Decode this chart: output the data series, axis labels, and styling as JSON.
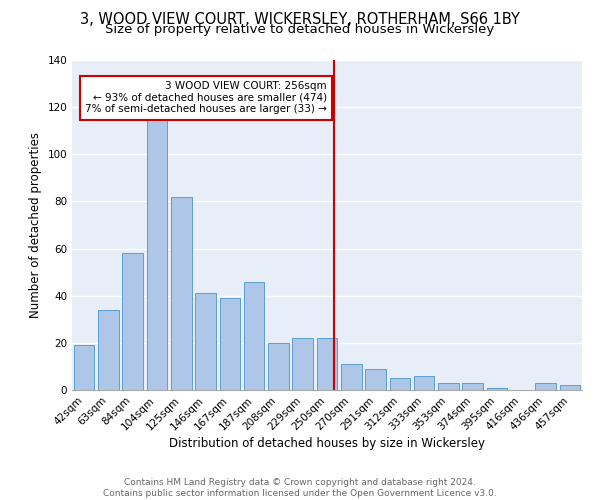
{
  "title": "3, WOOD VIEW COURT, WICKERSLEY, ROTHERHAM, S66 1BY",
  "subtitle": "Size of property relative to detached houses in Wickersley",
  "xlabel": "Distribution of detached houses by size in Wickersley",
  "ylabel": "Number of detached properties",
  "footnote": "Contains HM Land Registry data © Crown copyright and database right 2024.\nContains public sector information licensed under the Open Government Licence v3.0.",
  "categories": [
    "42sqm",
    "63sqm",
    "84sqm",
    "104sqm",
    "125sqm",
    "146sqm",
    "167sqm",
    "187sqm",
    "208sqm",
    "229sqm",
    "250sqm",
    "270sqm",
    "291sqm",
    "312sqm",
    "333sqm",
    "353sqm",
    "374sqm",
    "395sqm",
    "416sqm",
    "436sqm",
    "457sqm"
  ],
  "values": [
    19,
    34,
    58,
    118,
    82,
    41,
    39,
    46,
    20,
    22,
    22,
    11,
    9,
    5,
    6,
    3,
    3,
    1,
    0,
    3,
    2
  ],
  "bar_color": "#aec6e8",
  "bar_edge_color": "#5a9fd4",
  "reference_line_label": "3 WOOD VIEW COURT: 256sqm",
  "annotation_line1": "← 93% of detached houses are smaller (474)",
  "annotation_line2": "7% of semi-detached houses are larger (33) →",
  "annotation_box_color": "#cc0000",
  "ylim": [
    0,
    140
  ],
  "yticks": [
    0,
    20,
    40,
    60,
    80,
    100,
    120,
    140
  ],
  "bg_color": "#e8eef8",
  "grid_color": "#ffffff",
  "title_fontsize": 10.5,
  "subtitle_fontsize": 9.5,
  "axis_label_fontsize": 8.5,
  "tick_fontsize": 7.5,
  "annotation_fontsize": 7.5,
  "footnote_fontsize": 6.5
}
